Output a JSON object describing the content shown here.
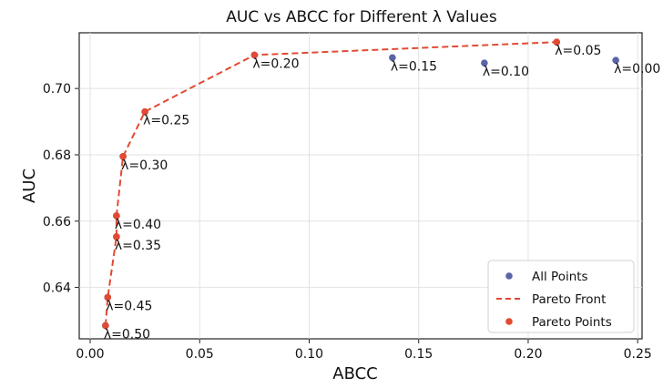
{
  "chart_data": {
    "type": "scatter",
    "title": "AUC vs ABCC for Different λ Values",
    "xlabel": "ABCC",
    "ylabel": "AUC",
    "xlim": [
      -0.005,
      0.252
    ],
    "ylim": [
      0.6245,
      0.7168
    ],
    "x_ticks": [
      0.0,
      0.05,
      0.1,
      0.15,
      0.2,
      0.25
    ],
    "x_tick_labels": [
      "0.00",
      "0.05",
      "0.10",
      "0.15",
      "0.20",
      "0.25"
    ],
    "y_ticks": [
      0.64,
      0.66,
      0.68,
      0.7
    ],
    "y_tick_labels": [
      "0.64",
      "0.66",
      "0.68",
      "0.70"
    ],
    "grid": true,
    "legend_position": "bottom-right",
    "colors": {
      "all_points": "#5a64a6",
      "pareto": "#e24a33"
    },
    "series": [
      {
        "name": "All Points",
        "kind": "scatter",
        "points": [
          {
            "label": "λ=0.00",
            "x": 0.24,
            "y": 0.7085
          },
          {
            "label": "λ=0.05",
            "x": 0.213,
            "y": 0.714
          },
          {
            "label": "λ=0.10",
            "x": 0.18,
            "y": 0.7077
          },
          {
            "label": "λ=0.15",
            "x": 0.138,
            "y": 0.7093
          },
          {
            "label": "λ=0.20",
            "x": 0.075,
            "y": 0.7101
          },
          {
            "label": "λ=0.25",
            "x": 0.025,
            "y": 0.693
          },
          {
            "label": "λ=0.30",
            "x": 0.015,
            "y": 0.6795
          },
          {
            "label": "λ=0.35",
            "x": 0.012,
            "y": 0.6553
          },
          {
            "label": "λ=0.40",
            "x": 0.012,
            "y": 0.6616
          },
          {
            "label": "λ=0.45",
            "x": 0.008,
            "y": 0.637
          },
          {
            "label": "λ=0.50",
            "x": 0.007,
            "y": 0.6285
          }
        ]
      },
      {
        "name": "Pareto Front",
        "kind": "line",
        "x": [
          0.007,
          0.008,
          0.012,
          0.012,
          0.015,
          0.025,
          0.075,
          0.213
        ],
        "y": [
          0.6285,
          0.637,
          0.6553,
          0.6616,
          0.6795,
          0.693,
          0.7101,
          0.714
        ]
      },
      {
        "name": "Pareto Points",
        "kind": "scatter",
        "x": [
          0.007,
          0.008,
          0.012,
          0.012,
          0.015,
          0.025,
          0.075,
          0.213
        ],
        "y": [
          0.6285,
          0.637,
          0.6553,
          0.6616,
          0.6795,
          0.693,
          0.7101,
          0.714
        ]
      }
    ]
  }
}
